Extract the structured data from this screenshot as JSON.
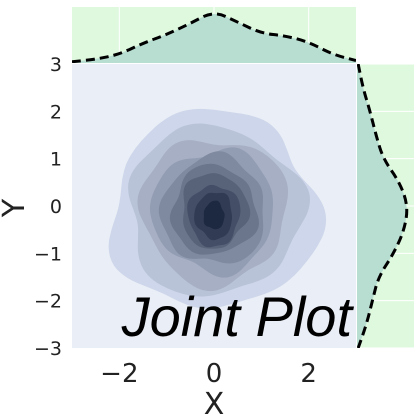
{
  "chart_data": {
    "type": "kde_joint",
    "title": "Joint Plot",
    "xlabel": "X",
    "ylabel": "Y",
    "xlim": [
      -3,
      3
    ],
    "ylim": [
      -3,
      3
    ],
    "x_ticks": [
      -2,
      0,
      2
    ],
    "y_ticks": [
      -3,
      -2,
      -1,
      0,
      1,
      2,
      3
    ],
    "grid": true,
    "center": {
      "x": 0.0,
      "y": -0.1
    },
    "peak_center": {
      "x": 0.0,
      "y": -0.2
    },
    "contour_levels": [
      {
        "rx": 2.2,
        "ry": 2.1
      },
      {
        "rx": 1.85,
        "ry": 1.8
      },
      {
        "rx": 1.55,
        "ry": 1.55
      },
      {
        "rx": 1.3,
        "ry": 1.3
      },
      {
        "rx": 1.1,
        "ry": 1.15
      },
      {
        "rx": 0.9,
        "ry": 0.95
      },
      {
        "rx": 0.7,
        "ry": 0.8
      },
      {
        "rx": 0.55,
        "ry": 0.65
      },
      {
        "rx": 0.4,
        "ry": 0.5
      },
      {
        "rx": 0.22,
        "ry": 0.3
      }
    ],
    "marginal_x": {
      "points": [
        [
          -3.0,
          0.01
        ],
        [
          -2.5,
          0.03
        ],
        [
          -2.0,
          0.07
        ],
        [
          -1.5,
          0.16
        ],
        [
          -1.0,
          0.23
        ],
        [
          -0.5,
          0.32
        ],
        [
          0.0,
          0.42
        ],
        [
          0.5,
          0.33
        ],
        [
          1.0,
          0.24
        ],
        [
          1.5,
          0.22
        ],
        [
          2.0,
          0.17
        ],
        [
          2.5,
          0.07
        ],
        [
          3.0,
          0.02
        ]
      ]
    },
    "marginal_y": {
      "points": [
        [
          3.0,
          0.01
        ],
        [
          2.5,
          0.05
        ],
        [
          2.0,
          0.11
        ],
        [
          1.5,
          0.16
        ],
        [
          1.0,
          0.22
        ],
        [
          0.5,
          0.36
        ],
        [
          0.0,
          0.43
        ],
        [
          -0.5,
          0.4
        ],
        [
          -1.0,
          0.31
        ],
        [
          -1.5,
          0.18
        ],
        [
          -2.0,
          0.13
        ],
        [
          -2.5,
          0.08
        ],
        [
          -3.0,
          0.01
        ]
      ]
    },
    "colors": {
      "joint_bg": "#eaeef6",
      "marginal_bg": "#dff9df",
      "marginal_fill": "#b8ddd1",
      "marginal_line": "#000000",
      "contour_light": "#cdd6ea",
      "contour_dark": "#1d2841"
    }
  }
}
